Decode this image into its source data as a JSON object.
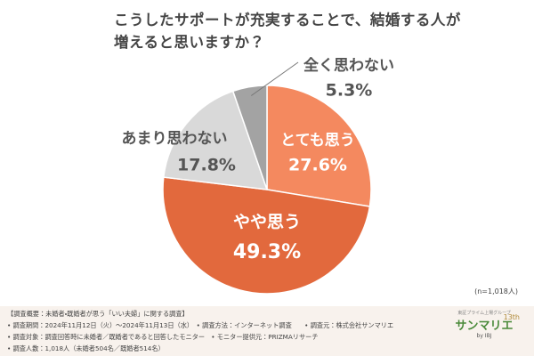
{
  "chart_data": {
    "type": "pie",
    "title": "こうしたサポートが充実することで、結婚する人が\n増えると思いますか？",
    "categories": [
      "とても思う",
      "やや思う",
      "あまり思わない",
      "全く思わない"
    ],
    "values": [
      27.6,
      49.3,
      17.8,
      5.3
    ],
    "value_labels": [
      "27.6%",
      "49.3%",
      "17.8%",
      "5.3%"
    ],
    "colors": [
      "#f4895f",
      "#e2693d",
      "#d9d9d9",
      "#a3a3a3"
    ],
    "annotation": "(n=1,018人)"
  },
  "footer": {
    "lines": [
      "【調査概要：未婚者・既婚者が思う「いい夫婦」に関する調査】",
      "• 調査期間：2024年11月12日（火）～2024年11月13日（水）　• 調査方法：インターネット調査　　• 調査元：株式会社サンマリエ",
      "• 調査対象：調査回答時に未婚者／既婚者であると回答したモニター　• モニター提供元：PRIZMAリサーチ",
      "• 調査人数：1,018人（未婚者504名／既婚者514名）"
    ]
  },
  "logo": {
    "tagline": "東証プライム上場グループ",
    "name": "サンマリエ",
    "by": "by IBJ",
    "anniversary": "13th"
  }
}
